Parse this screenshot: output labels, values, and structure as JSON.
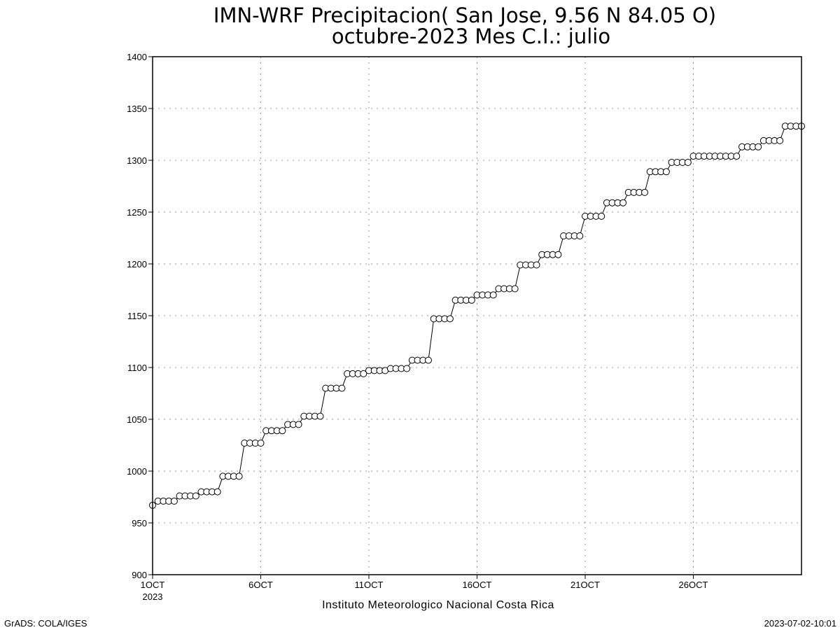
{
  "chart_data": {
    "type": "line",
    "title": "IMN-WRF  Precipitacion( San Jose, 9.56  N 84.05  O)",
    "subtitle": "octubre-2023 Mes C.I.: julio",
    "xlabel": "Instituto Meteorologico Nacional Costa Rica",
    "ylabel": "",
    "ylim": [
      900,
      1400
    ],
    "xlim": [
      "2023-10-01 00:00",
      "2023-10-31 00:00"
    ],
    "x_step_hours": 6,
    "y_ticks": [
      "900",
      "950",
      "1000",
      "1050",
      "1100",
      "1150",
      "1200",
      "1250",
      "1300",
      "1350",
      "1400"
    ],
    "x_ticks": [
      {
        "date": "2023-10-01",
        "label": "1OCT",
        "sublabel": "2023"
      },
      {
        "date": "2023-10-06",
        "label": "6OCT",
        "sublabel": ""
      },
      {
        "date": "2023-10-11",
        "label": "11OCT",
        "sublabel": ""
      },
      {
        "date": "2023-10-16",
        "label": "16OCT",
        "sublabel": ""
      },
      {
        "date": "2023-10-21",
        "label": "21OCT",
        "sublabel": ""
      },
      {
        "date": "2023-10-26",
        "label": "26OCT",
        "sublabel": ""
      }
    ],
    "grid": true,
    "marker": "open-circle",
    "series": [
      {
        "values": [
          967,
          971,
          971,
          971,
          971,
          976,
          976,
          976,
          976,
          980,
          980,
          980,
          980,
          995,
          995,
          995,
          995,
          1027,
          1027,
          1027,
          1027,
          1039,
          1039,
          1039,
          1039,
          1045,
          1045,
          1045,
          1053,
          1053,
          1053,
          1053,
          1080,
          1080,
          1080,
          1080,
          1094,
          1094,
          1094,
          1094,
          1097,
          1097,
          1097,
          1097,
          1099,
          1099,
          1099,
          1099,
          1107,
          1107,
          1107,
          1107,
          1147,
          1147,
          1147,
          1147,
          1165,
          1165,
          1165,
          1165,
          1170,
          1170,
          1170,
          1170,
          1176,
          1176,
          1176,
          1176,
          1199,
          1199,
          1199,
          1199,
          1209,
          1209,
          1209,
          1209,
          1227,
          1227,
          1227,
          1227,
          1246,
          1246,
          1246,
          1246,
          1259,
          1259,
          1259,
          1259,
          1269,
          1269,
          1269,
          1269,
          1289,
          1289,
          1289,
          1289,
          1298,
          1298,
          1298,
          1298,
          1304,
          1304,
          1304,
          1304,
          1304,
          1304,
          1304,
          1304,
          1304,
          1313,
          1313,
          1313,
          1313,
          1319,
          1319,
          1319,
          1319,
          1333,
          1333,
          1333,
          1333
        ]
      }
    ]
  },
  "footer": {
    "left": "GrADS: COLA/IGES",
    "right": "2023-07-02-10:01"
  }
}
